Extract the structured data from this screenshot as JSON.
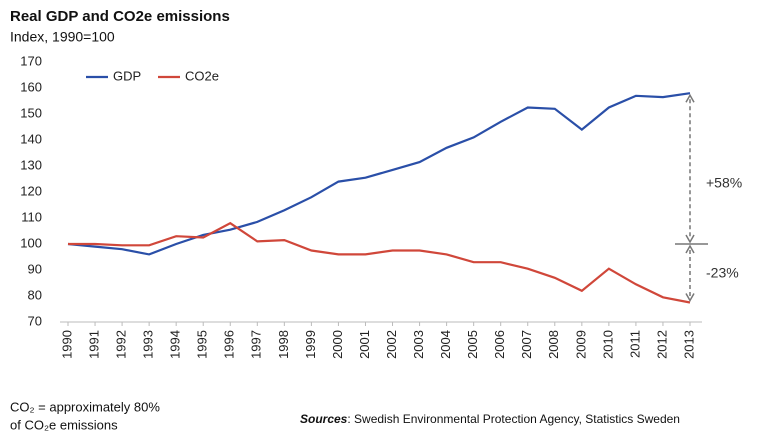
{
  "chart_data": {
    "type": "line",
    "title": "Real GDP and CO2e emissions",
    "subtitle": "Index, 1990=100",
    "categories": [
      "1990",
      "1991",
      "1992",
      "1993",
      "1994",
      "1995",
      "1996",
      "1997",
      "1998",
      "1999",
      "2000",
      "2001",
      "2002",
      "2003",
      "2004",
      "2005",
      "2006",
      "2007",
      "2008",
      "2009",
      "2010",
      "2011",
      "2012",
      "2013"
    ],
    "series": [
      {
        "name": "GDP",
        "color": "#2a4fa8",
        "values": [
          100,
          99,
          98,
          96,
          100,
          103.5,
          105.5,
          108.5,
          113,
          118,
          124,
          125.5,
          128.5,
          131.5,
          137,
          141,
          147,
          152.5,
          152,
          144,
          152.5,
          157,
          156.5,
          158
        ]
      },
      {
        "name": "CO2e",
        "color": "#d0473a",
        "values": [
          100,
          100,
          99.5,
          99.5,
          103,
          102.5,
          108,
          101,
          101.5,
          97.5,
          96,
          96,
          97.5,
          97.5,
          96,
          93,
          93,
          90.5,
          87,
          82,
          90.5,
          84.5,
          79.5,
          77.5
        ]
      }
    ],
    "ylim": [
      70,
      170
    ],
    "yticks": [
      70,
      80,
      90,
      100,
      110,
      120,
      130,
      140,
      150,
      160,
      170
    ],
    "grid": false,
    "legend": "top-left",
    "annotations": [
      "+58%",
      "-23%"
    ],
    "note": [
      "CO₂ = approximately 80%",
      "of CO₂e emissions"
    ],
    "sources_label": "Sources",
    "sources_text": ": Swedish Environmental Protection Agency, Statistics Sweden"
  }
}
